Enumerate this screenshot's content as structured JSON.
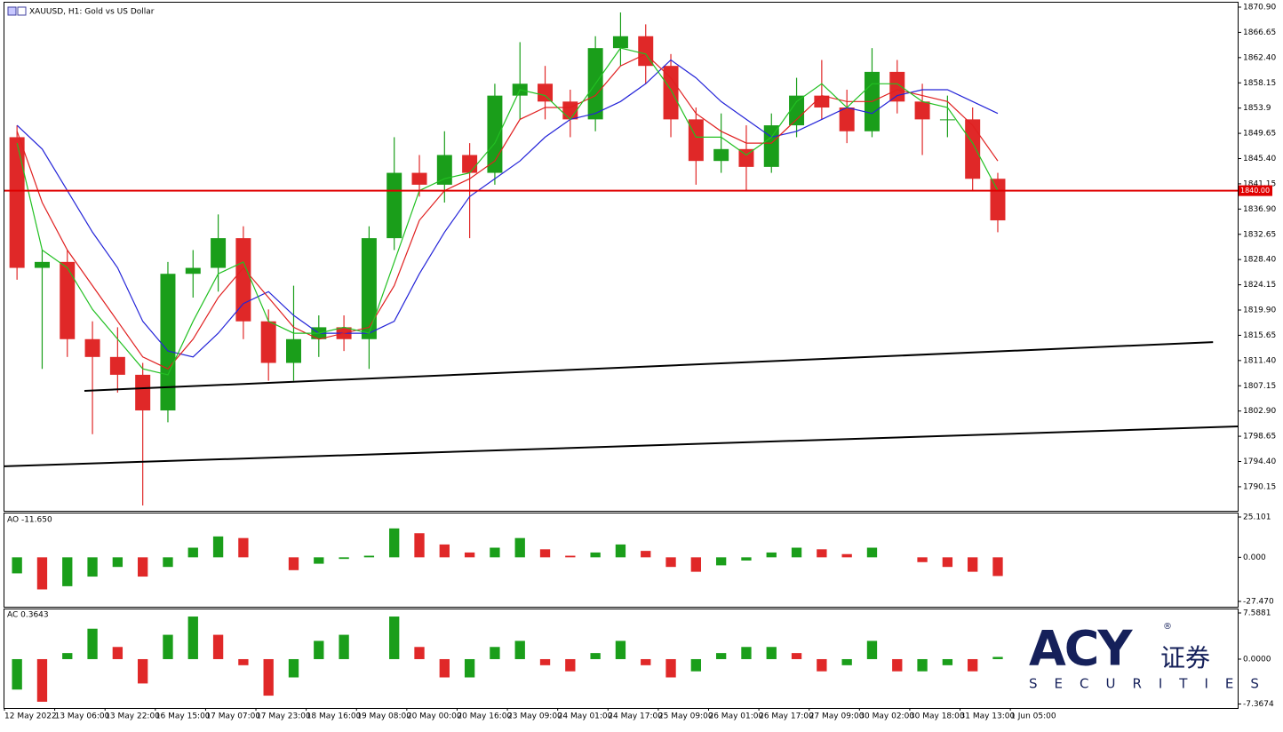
{
  "chart_data": [
    {
      "type": "candlestick",
      "title": "XAUUSD, H1:  Gold vs US Dollar",
      "xlim": [
        0,
        49.04
      ],
      "xticks": [
        {
          "value": 0,
          "label": "12 May 2022"
        },
        {
          "value": 2,
          "label": "13 May 06:00"
        },
        {
          "value": 4,
          "label": "13 May 22:00"
        },
        {
          "value": 6,
          "label": "16 May 15:00"
        },
        {
          "value": 8,
          "label": "17 May 07:00"
        },
        {
          "value": 10,
          "label": "17 May 23:00"
        },
        {
          "value": 12,
          "label": "18 May 16:00"
        },
        {
          "value": 14,
          "label": "19 May 08:00"
        },
        {
          "value": 16,
          "label": "20 May 00:00"
        },
        {
          "value": 18,
          "label": "20 May 16:00"
        },
        {
          "value": 20,
          "label": "23 May 09:00"
        },
        {
          "value": 22,
          "label": "24 May 01:00"
        },
        {
          "value": 24,
          "label": "24 May 17:00"
        },
        {
          "value": 26,
          "label": "25 May 09:00"
        },
        {
          "value": 28,
          "label": "26 May 01:00"
        },
        {
          "value": 30,
          "label": "26 May 17:00"
        },
        {
          "value": 32,
          "label": "27 May 09:00"
        },
        {
          "value": 34,
          "label": "30 May 02:00"
        },
        {
          "value": 36,
          "label": "30 May 18:00"
        },
        {
          "value": 38,
          "label": "31 May 13:00"
        },
        {
          "value": 40,
          "label": "1 Jun 05:00"
        }
      ],
      "ylim": [
        1786.1,
        1871.65
      ],
      "yticks": [
        {
          "value": 1870.9,
          "label": "1870.90"
        },
        1866.65,
        {
          "value": 1862.4,
          "label": "1862.40"
        },
        1858.15,
        1853.9,
        1849.65,
        {
          "value": 1845.4,
          "label": "1845.40"
        },
        1841.15,
        {
          "value": 1836.9,
          "label": "1836.90"
        },
        1832.65,
        {
          "value": 1828.4,
          "label": "1828.40"
        },
        1824.15,
        {
          "value": 1819.9,
          "label": "1819.90"
        },
        1815.65,
        {
          "value": 1811.4,
          "label": "1811.40"
        },
        1807.15,
        {
          "value": 1802.9,
          "label": "1802.90"
        },
        1798.65,
        {
          "value": 1794.4,
          "label": "1794.40"
        },
        1790.15
      ],
      "up_color": "#1a9e1a",
      "down_color": "#e02828",
      "open": [
        1849,
        1827,
        1828,
        1815,
        1812,
        1809,
        1803,
        1826,
        1827,
        1832,
        1818,
        1811,
        1815,
        1817,
        1815,
        1832,
        1843,
        1841,
        1846,
        1843,
        1856,
        1858,
        1855,
        1852,
        1864,
        1866,
        1861,
        1852,
        1845,
        1847,
        1844,
        1851,
        1856,
        1854,
        1850,
        1860,
        1855,
        1852,
        1852,
        1842
      ],
      "high": [
        1851,
        1830,
        1830,
        1818,
        1817,
        1811,
        1828,
        1830,
        1836,
        1834,
        1820,
        1824,
        1819,
        1819,
        1834,
        1849,
        1846,
        1850,
        1848,
        1858,
        1865,
        1861,
        1857,
        1866,
        1870,
        1868,
        1863,
        1854,
        1853,
        1851,
        1853,
        1859,
        1862,
        1857,
        1864,
        1862,
        1858,
        1856,
        1854,
        1843
      ],
      "low": [
        1825,
        1810,
        1812,
        1799,
        1806,
        1787,
        1801,
        1822,
        1823,
        1815,
        1808,
        1808,
        1812,
        1813,
        1810,
        1830,
        1839,
        1838,
        1832,
        1841,
        1852,
        1852,
        1849,
        1850,
        1861,
        1858,
        1849,
        1841,
        1843,
        1840,
        1843,
        1849,
        1852,
        1848,
        1849,
        1853,
        1846,
        1849,
        1840,
        1833
      ],
      "close": [
        1827,
        1828,
        1815,
        1812,
        1809,
        1803,
        1826,
        1827,
        1832,
        1818,
        1811,
        1815,
        1817,
        1815,
        1832,
        1843,
        1841,
        1846,
        1843,
        1856,
        1858,
        1855,
        1852,
        1864,
        1866,
        1861,
        1852,
        1845,
        1847,
        1844,
        1851,
        1856,
        1854,
        1850,
        1860,
        1855,
        1852,
        1852,
        1842,
        1835
      ],
      "moving_averages": [
        {
          "color": "#2424d8",
          "values": [
            1851,
            1847,
            1840,
            1833,
            1827,
            1818,
            1813,
            1812,
            1816,
            1821,
            1823,
            1819,
            1816,
            1816,
            1816,
            1818,
            1826,
            1833,
            1839,
            1842,
            1845,
            1849,
            1852,
            1853,
            1855,
            1858,
            1862,
            1859,
            1855,
            1852,
            1849,
            1850,
            1852,
            1854,
            1853,
            1856,
            1857,
            1857,
            1855,
            1853
          ]
        },
        {
          "color": "#e02020",
          "values": [
            1850,
            1838,
            1830,
            1824,
            1818,
            1812,
            1810,
            1815,
            1822,
            1827,
            1822,
            1817,
            1815,
            1816,
            1817,
            1824,
            1835,
            1840,
            1842,
            1845,
            1852,
            1854,
            1854,
            1856,
            1861,
            1863,
            1859,
            1853,
            1850,
            1848,
            1848,
            1852,
            1856,
            1855,
            1855,
            1857,
            1856,
            1855,
            1851,
            1845
          ]
        },
        {
          "color": "#22c022",
          "values": [
            1848,
            1830,
            1827,
            1820,
            1815,
            1810,
            1809,
            1818,
            1826,
            1828,
            1818,
            1816,
            1816,
            1817,
            1816,
            1828,
            1840,
            1842,
            1843,
            1848,
            1857,
            1856,
            1852,
            1858,
            1864,
            1863,
            1857,
            1849,
            1849,
            1846,
            1849,
            1855,
            1858,
            1854,
            1858,
            1858,
            1855,
            1854,
            1848,
            1840
          ]
        }
      ],
      "hline": {
        "value": 1840,
        "label": "1840.00",
        "color": "#e00000"
      },
      "trendlines": [
        {
          "x": [
            3.18,
            48.06
          ],
          "y": [
            1806.3,
            1814.5
          ]
        },
        {
          "x": [
            0,
            49.04
          ],
          "y": [
            1793.6,
            1800.3
          ]
        }
      ]
    },
    {
      "type": "bar",
      "title": "AO -11.650",
      "ylim": [
        -30.79,
        27.31
      ],
      "yticks": [
        25.101,
        {
          "value": 0,
          "label": "0.000"
        },
        {
          "value": -27.47,
          "label": "-27.470"
        }
      ],
      "up_color": "#1a9e1a",
      "down_color": "#e02828",
      "values": [
        -10,
        -20,
        -18,
        -12,
        -6,
        -12,
        -6,
        6,
        13,
        12,
        0,
        -8,
        -4,
        -1,
        1,
        18,
        15,
        8,
        3,
        6,
        12,
        5,
        1,
        3,
        8,
        4,
        -6,
        -9,
        -5,
        -2,
        3,
        6,
        5,
        2,
        6,
        0,
        -3,
        -6,
        -9,
        -11.65
      ]
    },
    {
      "type": "bar",
      "title": "AC 0.3643",
      "ylim": [
        -8.03,
        8.17
      ],
      "yticks": [
        7.5881,
        {
          "value": 0,
          "label": "0.0000"
        },
        -7.3674
      ],
      "up_color": "#1a9e1a",
      "down_color": "#e02828",
      "values": [
        -5,
        -7,
        1,
        5,
        2,
        -4,
        4,
        7,
        4,
        -1,
        -6,
        -3,
        3,
        4,
        0,
        7,
        2,
        -3,
        -3,
        2,
        3,
        -1,
        -2,
        1,
        3,
        -1,
        -3,
        -2,
        1,
        2,
        2,
        1,
        -2,
        -1,
        3,
        -2,
        -2,
        -1,
        -2,
        0.3643
      ]
    }
  ],
  "logo": {
    "brand": "ACY",
    "chinese": "证券",
    "sub": "SECURITIES",
    "mark": "®"
  }
}
